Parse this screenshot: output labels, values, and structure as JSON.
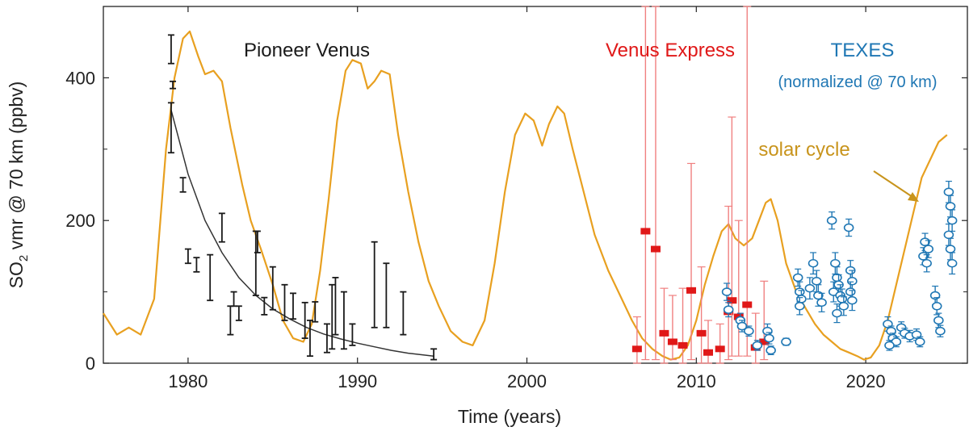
{
  "chart_data": {
    "type": "scatter",
    "xlabel": "Time (years)",
    "ylabel_main": "SO",
    "ylabel_sub": "2",
    "ylabel_rest": " vmr @ 70 km (ppbv)",
    "xlim": [
      1975,
      2026
    ],
    "ylim": [
      0,
      500
    ],
    "x_ticks": [
      1980,
      1990,
      2000,
      2010,
      2020
    ],
    "y_ticks": [
      0,
      200,
      400
    ],
    "y_minor_ticks": [
      100,
      300
    ],
    "annotations": {
      "pioneer": "Pioneer Venus",
      "venus_express": "Venus Express",
      "texes": "TEXES",
      "texes_note": "(normalized @ 70 km)",
      "solar": "solar cycle"
    },
    "colors": {
      "pioneer": "#1a1a1a",
      "venus_express": "#e01818",
      "venus_express_err": "#f08080",
      "texes": "#1f77b4",
      "solar": "#e8a020",
      "solar_label": "#c8941c",
      "fit": "#333333"
    },
    "series": [
      {
        "name": "solar cycle",
        "kind": "line",
        "points": [
          [
            1975,
            70
          ],
          [
            1975.8,
            40
          ],
          [
            1976.5,
            50
          ],
          [
            1977.2,
            40
          ],
          [
            1978,
            90
          ],
          [
            1978.7,
            300
          ],
          [
            1979.2,
            400
          ],
          [
            1979.7,
            455
          ],
          [
            1980.1,
            465
          ],
          [
            1980.6,
            430
          ],
          [
            1981,
            405
          ],
          [
            1981.5,
            410
          ],
          [
            1982,
            395
          ],
          [
            1982.5,
            330
          ],
          [
            1983.2,
            250
          ],
          [
            1983.7,
            200
          ],
          [
            1984.3,
            160
          ],
          [
            1985,
            110
          ],
          [
            1985.6,
            60
          ],
          [
            1986.2,
            35
          ],
          [
            1986.8,
            30
          ],
          [
            1987.3,
            55
          ],
          [
            1987.8,
            130
          ],
          [
            1988.3,
            230
          ],
          [
            1988.8,
            340
          ],
          [
            1989.3,
            410
          ],
          [
            1989.7,
            425
          ],
          [
            1990.2,
            420
          ],
          [
            1990.6,
            385
          ],
          [
            1991,
            395
          ],
          [
            1991.4,
            410
          ],
          [
            1991.9,
            405
          ],
          [
            1992.4,
            320
          ],
          [
            1993,
            240
          ],
          [
            1993.6,
            170
          ],
          [
            1994.2,
            115
          ],
          [
            1994.8,
            80
          ],
          [
            1995.5,
            45
          ],
          [
            1996.2,
            30
          ],
          [
            1996.8,
            25
          ],
          [
            1997.5,
            60
          ],
          [
            1998.1,
            140
          ],
          [
            1998.7,
            240
          ],
          [
            1999.3,
            320
          ],
          [
            1999.9,
            350
          ],
          [
            2000.4,
            340
          ],
          [
            2000.9,
            305
          ],
          [
            2001.3,
            335
          ],
          [
            2001.8,
            360
          ],
          [
            2002.2,
            350
          ],
          [
            2002.7,
            300
          ],
          [
            2003.3,
            245
          ],
          [
            2004,
            180
          ],
          [
            2004.8,
            130
          ],
          [
            2005.5,
            95
          ],
          [
            2006.2,
            60
          ],
          [
            2006.8,
            35
          ],
          [
            2007.4,
            20
          ],
          [
            2008,
            10
          ],
          [
            2008.5,
            5
          ],
          [
            2009,
            8
          ],
          [
            2009.5,
            25
          ],
          [
            2010,
            60
          ],
          [
            2010.5,
            110
          ],
          [
            2011,
            150
          ],
          [
            2011.5,
            185
          ],
          [
            2011.9,
            195
          ],
          [
            2012.3,
            175
          ],
          [
            2012.8,
            165
          ],
          [
            2013.3,
            175
          ],
          [
            2013.7,
            200
          ],
          [
            2014.1,
            225
          ],
          [
            2014.4,
            230
          ],
          [
            2014.8,
            200
          ],
          [
            2015.3,
            140
          ],
          [
            2015.9,
            100
          ],
          [
            2016.5,
            75
          ],
          [
            2017,
            55
          ],
          [
            2017.5,
            40
          ],
          [
            2018,
            30
          ],
          [
            2018.5,
            20
          ],
          [
            2019,
            15
          ],
          [
            2019.5,
            10
          ],
          [
            2019.9,
            5
          ],
          [
            2020.3,
            8
          ],
          [
            2020.8,
            25
          ],
          [
            2021.3,
            60
          ],
          [
            2021.8,
            110
          ],
          [
            2022.3,
            160
          ],
          [
            2022.8,
            210
          ],
          [
            2023.3,
            260
          ],
          [
            2023.8,
            285
          ],
          [
            2024.3,
            310
          ],
          [
            2024.8,
            320
          ]
        ]
      },
      {
        "name": "Pioneer Venus fit",
        "kind": "line",
        "points": [
          [
            1979,
            355
          ],
          [
            1980,
            265
          ],
          [
            1981,
            200
          ],
          [
            1982,
            155
          ],
          [
            1983,
            120
          ],
          [
            1984,
            95
          ],
          [
            1985,
            76
          ],
          [
            1986,
            62
          ],
          [
            1987,
            50
          ],
          [
            1988,
            41
          ],
          [
            1989,
            34
          ],
          [
            1990,
            28
          ],
          [
            1991,
            23
          ],
          [
            1992,
            18
          ],
          [
            1993,
            14
          ],
          [
            1994.5,
            10
          ]
        ]
      },
      {
        "name": "Pioneer Venus",
        "kind": "errorbar",
        "points": [
          [
            1979,
            440,
            420,
            460
          ],
          [
            1979,
            330,
            295,
            365
          ],
          [
            1979.7,
            250,
            240,
            260
          ],
          [
            1979.1,
            390,
            385,
            395
          ],
          [
            1980,
            150,
            140,
            160
          ],
          [
            1980.5,
            138,
            128,
            148
          ],
          [
            1981.3,
            120,
            88,
            152
          ],
          [
            1982,
            190,
            170,
            210
          ],
          [
            1982.5,
            60,
            40,
            80
          ],
          [
            1982.7,
            90,
            80,
            100
          ],
          [
            1983,
            70,
            60,
            80
          ],
          [
            1984.1,
            170,
            155,
            185
          ],
          [
            1984,
            140,
            95,
            185
          ],
          [
            1984.5,
            80,
            68,
            92
          ],
          [
            1985,
            105,
            75,
            135
          ],
          [
            1985.7,
            85,
            60,
            110
          ],
          [
            1986.2,
            80,
            62,
            98
          ],
          [
            1986.9,
            60,
            35,
            85
          ],
          [
            1987.2,
            35,
            10,
            60
          ],
          [
            1987.5,
            72,
            58,
            86
          ],
          [
            1988.2,
            35,
            15,
            55
          ],
          [
            1988.5,
            65,
            20,
            110
          ],
          [
            1988.7,
            80,
            40,
            120
          ],
          [
            1989.2,
            60,
            20,
            100
          ],
          [
            1989.7,
            40,
            25,
            55
          ],
          [
            1991,
            110,
            50,
            170
          ],
          [
            1991.7,
            95,
            50,
            140
          ],
          [
            1992.7,
            70,
            40,
            100
          ],
          [
            1994.5,
            12,
            5,
            20
          ]
        ]
      },
      {
        "name": "Venus Express",
        "kind": "errorbar",
        "points": [
          [
            2006.5,
            20,
            0,
            65
          ],
          [
            2007,
            185,
            5,
            500
          ],
          [
            2007.6,
            160,
            5,
            500
          ],
          [
            2008.1,
            42,
            0,
            105
          ],
          [
            2008.6,
            30,
            5,
            95
          ],
          [
            2009.2,
            25,
            0,
            105
          ],
          [
            2009.7,
            102,
            5,
            280
          ],
          [
            2010.3,
            42,
            0,
            135
          ],
          [
            2010.7,
            15,
            0,
            60
          ],
          [
            2011.4,
            20,
            0,
            55
          ],
          [
            2011.9,
            72,
            5,
            220
          ],
          [
            2012.1,
            88,
            10,
            345
          ],
          [
            2012.5,
            65,
            10,
            200
          ],
          [
            2013,
            82,
            10,
            500
          ],
          [
            2013.5,
            22,
            0,
            70
          ],
          [
            2014,
            30,
            5,
            115
          ]
        ]
      },
      {
        "name": "TEXES",
        "kind": "errorbar",
        "points": [
          [
            2011.8,
            100,
            88,
            112
          ],
          [
            2011.9,
            75,
            65,
            85
          ],
          [
            2012.6,
            60,
            50,
            70
          ],
          [
            2012.7,
            52,
            44,
            60
          ],
          [
            2013.1,
            45,
            38,
            52
          ],
          [
            2014.2,
            45,
            35,
            55
          ],
          [
            2014.3,
            35,
            27,
            43
          ],
          [
            2013.6,
            25,
            18,
            32
          ],
          [
            2014.4,
            18,
            12,
            24
          ],
          [
            2015.3,
            30,
            25,
            35
          ],
          [
            2016,
            120,
            108,
            132
          ],
          [
            2016.1,
            100,
            86,
            114
          ],
          [
            2016.2,
            90,
            78,
            102
          ],
          [
            2016.1,
            80,
            68,
            92
          ],
          [
            2016.7,
            105,
            90,
            120
          ],
          [
            2016.9,
            140,
            125,
            155
          ],
          [
            2017.1,
            115,
            100,
            130
          ],
          [
            2017.2,
            95,
            80,
            110
          ],
          [
            2017.4,
            85,
            72,
            98
          ],
          [
            2018,
            200,
            188,
            212
          ],
          [
            2018.2,
            140,
            125,
            155
          ],
          [
            2018.3,
            120,
            105,
            135
          ],
          [
            2018.4,
            110,
            96,
            124
          ],
          [
            2018.1,
            100,
            86,
            114
          ],
          [
            2018.5,
            95,
            80,
            110
          ],
          [
            2018.6,
            90,
            76,
            104
          ],
          [
            2018.7,
            80,
            67,
            93
          ],
          [
            2018.3,
            70,
            57,
            83
          ],
          [
            2019,
            190,
            178,
            202
          ],
          [
            2019.1,
            130,
            116,
            144
          ],
          [
            2019.2,
            115,
            100,
            130
          ],
          [
            2019.1,
            100,
            86,
            114
          ],
          [
            2019.2,
            88,
            74,
            102
          ],
          [
            2021.3,
            55,
            45,
            65
          ],
          [
            2021.5,
            45,
            38,
            52
          ],
          [
            2021.6,
            35,
            28,
            42
          ],
          [
            2021.8,
            30,
            23,
            37
          ],
          [
            2021.4,
            25,
            18,
            32
          ],
          [
            2022.1,
            50,
            42,
            58
          ],
          [
            2022.3,
            42,
            35,
            49
          ],
          [
            2022.6,
            38,
            30,
            46
          ],
          [
            2023,
            40,
            32,
            48
          ],
          [
            2023.2,
            30,
            23,
            37
          ],
          [
            2023.4,
            150,
            138,
            162
          ],
          [
            2023.5,
            170,
            158,
            182
          ],
          [
            2023.6,
            140,
            128,
            152
          ],
          [
            2023.7,
            160,
            148,
            172
          ],
          [
            2024.1,
            95,
            82,
            108
          ],
          [
            2024.2,
            80,
            68,
            92
          ],
          [
            2024.3,
            60,
            50,
            70
          ],
          [
            2024.4,
            45,
            37,
            53
          ],
          [
            2024.9,
            240,
            225,
            255
          ],
          [
            2025,
            220,
            205,
            235
          ],
          [
            2025.1,
            200,
            185,
            215
          ],
          [
            2024.9,
            180,
            165,
            195
          ],
          [
            2025,
            160,
            145,
            175
          ],
          [
            2025.1,
            140,
            125,
            155
          ]
        ]
      }
    ]
  }
}
